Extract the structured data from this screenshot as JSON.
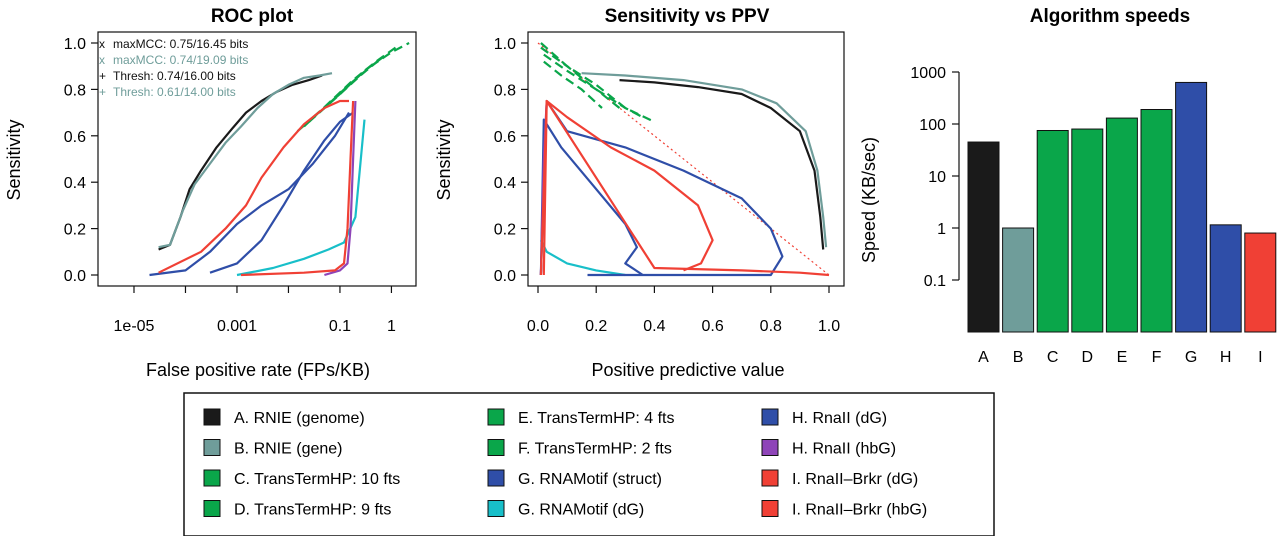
{
  "roc": {
    "title": "ROC plot",
    "xlabel": "False positive rate (FPs/KB)",
    "ylabel": "Sensitivity",
    "xticks": [
      "1e-05",
      "0.001",
      "0.1",
      "1"
    ],
    "yticks": [
      "0.0",
      "0.2",
      "0.4",
      "0.6",
      "0.8",
      "1.0"
    ],
    "annotations": [
      {
        "marker": "x",
        "text": "maxMCC: 0.75/16.45 bits",
        "color": "#111111"
      },
      {
        "marker": "x",
        "text": "maxMCC: 0.74/19.09 bits",
        "color": "#6f9d9a"
      },
      {
        "marker": "+",
        "text": "Thresh: 0.74/16.00 bits",
        "color": "#111111"
      },
      {
        "marker": "+",
        "text": "Thresh: 0.61/14.00 bits",
        "color": "#6f9d9a"
      }
    ]
  },
  "sppv": {
    "title": "Sensitivity vs PPV",
    "xlabel": "Positive predictive value",
    "ylabel": "Sensitivity",
    "xticks": [
      "0.0",
      "0.2",
      "0.4",
      "0.6",
      "0.8",
      "1.0"
    ],
    "yticks": [
      "0.0",
      "0.2",
      "0.4",
      "0.6",
      "0.8",
      "1.0"
    ]
  },
  "speed": {
    "title": "Algorithm speeds",
    "ylabel": "Speed (KB/sec)",
    "yticks": [
      "0.1",
      "1",
      "10",
      "100",
      "1000"
    ]
  },
  "legend": [
    {
      "label": "A. RNIE (genome)",
      "color": "#1a1a1a"
    },
    {
      "label": "B. RNIE (gene)",
      "color": "#6f9d9a"
    },
    {
      "label": "C. TransTermHP: 10 fts",
      "color": "#0aa64a"
    },
    {
      "label": "D. TransTermHP: 9 fts",
      "color": "#0aa64a"
    },
    {
      "label": "E. TransTermHP: 4 fts",
      "color": "#0aa64a"
    },
    {
      "label": "F. TransTermHP: 2 fts",
      "color": "#0aa64a"
    },
    {
      "label": "G. RNAMotif (struct)",
      "color": "#2f4ea8"
    },
    {
      "label": "G. RNAMotif (dG)",
      "color": "#18bfc9"
    },
    {
      "label": "H. RnaII (dG)",
      "color": "#2f4ea8"
    },
    {
      "label": "H. RnaII (hbG)",
      "color": "#8e44b8"
    },
    {
      "label": "I. RnaII–Brkr (dG)",
      "color": "#f04035"
    },
    {
      "label": "I. RnaII–Brkr (hbG)",
      "color": "#f04035"
    }
  ],
  "chart_data": [
    {
      "type": "line",
      "title": "ROC plot",
      "xlabel": "False positive rate (FPs/KB)",
      "ylabel": "Sensitivity",
      "xscale": "log",
      "xlim": [
        2e-06,
        3
      ],
      "ylim": [
        0,
        1
      ],
      "series": [
        {
          "name": "A. RNIE (genome)",
          "color": "#1a1a1a",
          "x": [
            3e-05,
            5e-05,
            8e-05,
            0.00012,
            0.0002,
            0.0004,
            0.0008,
            0.0015,
            0.003,
            0.006,
            0.012,
            0.025,
            0.045
          ],
          "y": [
            0.11,
            0.13,
            0.25,
            0.37,
            0.45,
            0.55,
            0.63,
            0.7,
            0.75,
            0.79,
            0.82,
            0.84,
            0.86
          ]
        },
        {
          "name": "B. RNIE (gene)",
          "color": "#6f9d9a",
          "x": [
            3e-05,
            5e-05,
            9e-05,
            0.00015,
            0.0003,
            0.0006,
            0.0012,
            0.0025,
            0.005,
            0.01,
            0.02,
            0.04,
            0.07
          ],
          "y": [
            0.12,
            0.13,
            0.28,
            0.39,
            0.48,
            0.57,
            0.64,
            0.72,
            0.78,
            0.82,
            0.85,
            0.86,
            0.87
          ]
        },
        {
          "name": "C. TransTermHP: 10 fts",
          "color": "#0aa64a",
          "dashed": true,
          "x": [
            0.015,
            0.05,
            0.15,
            0.4,
            1,
            2.2
          ],
          "y": [
            0.62,
            0.72,
            0.82,
            0.9,
            0.96,
            1.0
          ]
        },
        {
          "name": "D. TransTermHP: 9 fts",
          "color": "#0aa64a",
          "dashed": true,
          "x": [
            0.02,
            0.06,
            0.18,
            0.5,
            1.2
          ],
          "y": [
            0.64,
            0.74,
            0.84,
            0.92,
            0.98
          ]
        },
        {
          "name": "E. TransTermHP: 4 fts",
          "color": "#0aa64a",
          "dashed": true,
          "x": [
            0.025,
            0.08,
            0.25,
            0.6
          ],
          "y": [
            0.66,
            0.76,
            0.86,
            0.93
          ]
        },
        {
          "name": "F. TransTermHP: 2 fts",
          "color": "#0aa64a",
          "dashed": true,
          "x": [
            0.03,
            0.1,
            0.3,
            0.8
          ],
          "y": [
            0.68,
            0.78,
            0.88,
            0.95
          ]
        },
        {
          "name": "G. RNAMotif (struct)",
          "color": "#2f4ea8",
          "x": [
            0.0003,
            0.001,
            0.003,
            0.008,
            0.02,
            0.05,
            0.1,
            0.18
          ],
          "y": [
            0.01,
            0.05,
            0.15,
            0.3,
            0.45,
            0.58,
            0.66,
            0.7
          ]
        },
        {
          "name": "G. RNAMotif (dG)",
          "color": "#18bfc9",
          "x": [
            0.001,
            0.005,
            0.02,
            0.06,
            0.12,
            0.2,
            0.3
          ],
          "y": [
            0.0,
            0.03,
            0.07,
            0.11,
            0.14,
            0.25,
            0.67
          ]
        },
        {
          "name": "H. RnaII (dG)",
          "color": "#2f4ea8",
          "x": [
            2e-05,
            0.0001,
            0.0003,
            0.001,
            0.003,
            0.01,
            0.03,
            0.08,
            0.15
          ],
          "y": [
            0.0,
            0.02,
            0.1,
            0.22,
            0.3,
            0.37,
            0.48,
            0.6,
            0.7
          ]
        },
        {
          "name": "H. RnaII (hbG)",
          "color": "#8e44b8",
          "x": [
            0.05,
            0.1,
            0.14,
            0.16,
            0.18,
            0.2
          ],
          "y": [
            0.0,
            0.02,
            0.05,
            0.2,
            0.5,
            0.75
          ]
        },
        {
          "name": "I. RnaII–Brkr (dG)",
          "color": "#f04035",
          "x": [
            3e-05,
            0.0002,
            0.0006,
            0.0015,
            0.003,
            0.008,
            0.02,
            0.05,
            0.1,
            0.15
          ],
          "y": [
            0.01,
            0.1,
            0.2,
            0.3,
            0.42,
            0.55,
            0.65,
            0.72,
            0.75,
            0.75
          ]
        },
        {
          "name": "I. RnaII–Brkr (hbG)",
          "color": "#f04035",
          "x": [
            0.0012,
            0.02,
            0.08,
            0.12,
            0.14,
            0.16,
            0.18
          ],
          "y": [
            0.0,
            0.01,
            0.02,
            0.05,
            0.2,
            0.5,
            0.75
          ]
        }
      ]
    },
    {
      "type": "line",
      "title": "Sensitivity vs PPV",
      "xlabel": "Positive predictive value",
      "ylabel": "Sensitivity",
      "xlim": [
        0,
        1
      ],
      "ylim": [
        0,
        1
      ],
      "diagonal": {
        "x": [
          0,
          1
        ],
        "y": [
          1,
          0
        ],
        "color": "#f04035"
      },
      "series": [
        {
          "name": "A. RNIE (genome)",
          "color": "#1a1a1a",
          "x": [
            0.28,
            0.4,
            0.55,
            0.7,
            0.8,
            0.9,
            0.95,
            0.97,
            0.98
          ],
          "y": [
            0.84,
            0.83,
            0.81,
            0.78,
            0.72,
            0.62,
            0.45,
            0.25,
            0.11
          ]
        },
        {
          "name": "B. RNIE (gene)",
          "color": "#6f9d9a",
          "x": [
            0.15,
            0.3,
            0.5,
            0.7,
            0.82,
            0.92,
            0.96,
            0.98,
            0.99
          ],
          "y": [
            0.87,
            0.86,
            0.84,
            0.8,
            0.74,
            0.62,
            0.45,
            0.25,
            0.12
          ]
        },
        {
          "name": "C. TransTermHP: 10 fts",
          "color": "#0aa64a",
          "dashed": true,
          "x": [
            0.01,
            0.1,
            0.2,
            0.3,
            0.4
          ],
          "y": [
            1.0,
            0.9,
            0.82,
            0.72,
            0.66
          ]
        },
        {
          "name": "D. TransTermHP: 9 fts",
          "color": "#0aa64a",
          "dashed": true,
          "x": [
            0.01,
            0.1,
            0.2,
            0.3,
            0.36
          ],
          "y": [
            0.98,
            0.9,
            0.8,
            0.72,
            0.68
          ]
        },
        {
          "name": "E. TransTermHP: 4 fts",
          "color": "#0aa64a",
          "dashed": true,
          "x": [
            0.02,
            0.1,
            0.2,
            0.28
          ],
          "y": [
            0.95,
            0.88,
            0.8,
            0.72
          ]
        },
        {
          "name": "F. TransTermHP: 2 fts",
          "color": "#0aa64a",
          "dashed": true,
          "x": [
            0.02,
            0.08,
            0.15,
            0.22
          ],
          "y": [
            0.92,
            0.86,
            0.8,
            0.72
          ]
        },
        {
          "name": "G. RNAMotif (struct)",
          "color": "#2f4ea8",
          "x": [
            0.01,
            0.02,
            0.08,
            0.18,
            0.3,
            0.34,
            0.3,
            0.36
          ],
          "y": [
            0.0,
            0.67,
            0.55,
            0.4,
            0.22,
            0.12,
            0.05,
            0.0
          ]
        },
        {
          "name": "G. RNAMotif (dG)",
          "color": "#18bfc9",
          "x": [
            0.01,
            0.03,
            0.1,
            0.2,
            0.3
          ],
          "y": [
            0.15,
            0.1,
            0.05,
            0.02,
            0.0
          ]
        },
        {
          "name": "H. RnaII (dG)",
          "color": "#2f4ea8",
          "x": [
            0.01,
            0.03,
            0.1,
            0.3,
            0.5,
            0.7,
            0.8,
            0.84,
            0.8,
            0.17
          ],
          "y": [
            0.0,
            0.75,
            0.62,
            0.55,
            0.45,
            0.33,
            0.2,
            0.08,
            0.0,
            0.0
          ]
        },
        {
          "name": "H. RnaII (hbG)",
          "color": "#8e44b8",
          "x": [
            0.01,
            0.02,
            0.03
          ],
          "y": [
            0.0,
            0.5,
            0.75
          ]
        },
        {
          "name": "I. RnaII–Brkr (dG)",
          "color": "#f04035",
          "x": [
            0.01,
            0.03,
            0.1,
            0.25,
            0.4,
            0.55,
            0.6,
            0.56,
            0.5
          ],
          "y": [
            0.0,
            0.75,
            0.68,
            0.55,
            0.45,
            0.3,
            0.15,
            0.05,
            0.02
          ]
        },
        {
          "name": "I. RnaII–Brkr (hbG)",
          "color": "#f04035",
          "x": [
            0.02,
            0.03,
            0.4,
            0.7,
            0.9,
            1.0
          ],
          "y": [
            0.0,
            0.75,
            0.03,
            0.02,
            0.01,
            0.0
          ]
        }
      ]
    },
    {
      "type": "bar",
      "title": "Algorithm speeds",
      "ylabel": "Speed (KB/sec)",
      "yscale": "log",
      "ylim": [
        0.01,
        1000
      ],
      "categories": [
        "A",
        "B",
        "C",
        "D",
        "E",
        "F",
        "G",
        "H",
        "I"
      ],
      "values": [
        45,
        1.0,
        75,
        80,
        130,
        190,
        630,
        1.15,
        0.8
      ],
      "colors": [
        "#1a1a1a",
        "#6f9d9a",
        "#0aa64a",
        "#0aa64a",
        "#0aa64a",
        "#0aa64a",
        "#2f4ea8",
        "#2f4ea8",
        "#f04035"
      ]
    }
  ]
}
